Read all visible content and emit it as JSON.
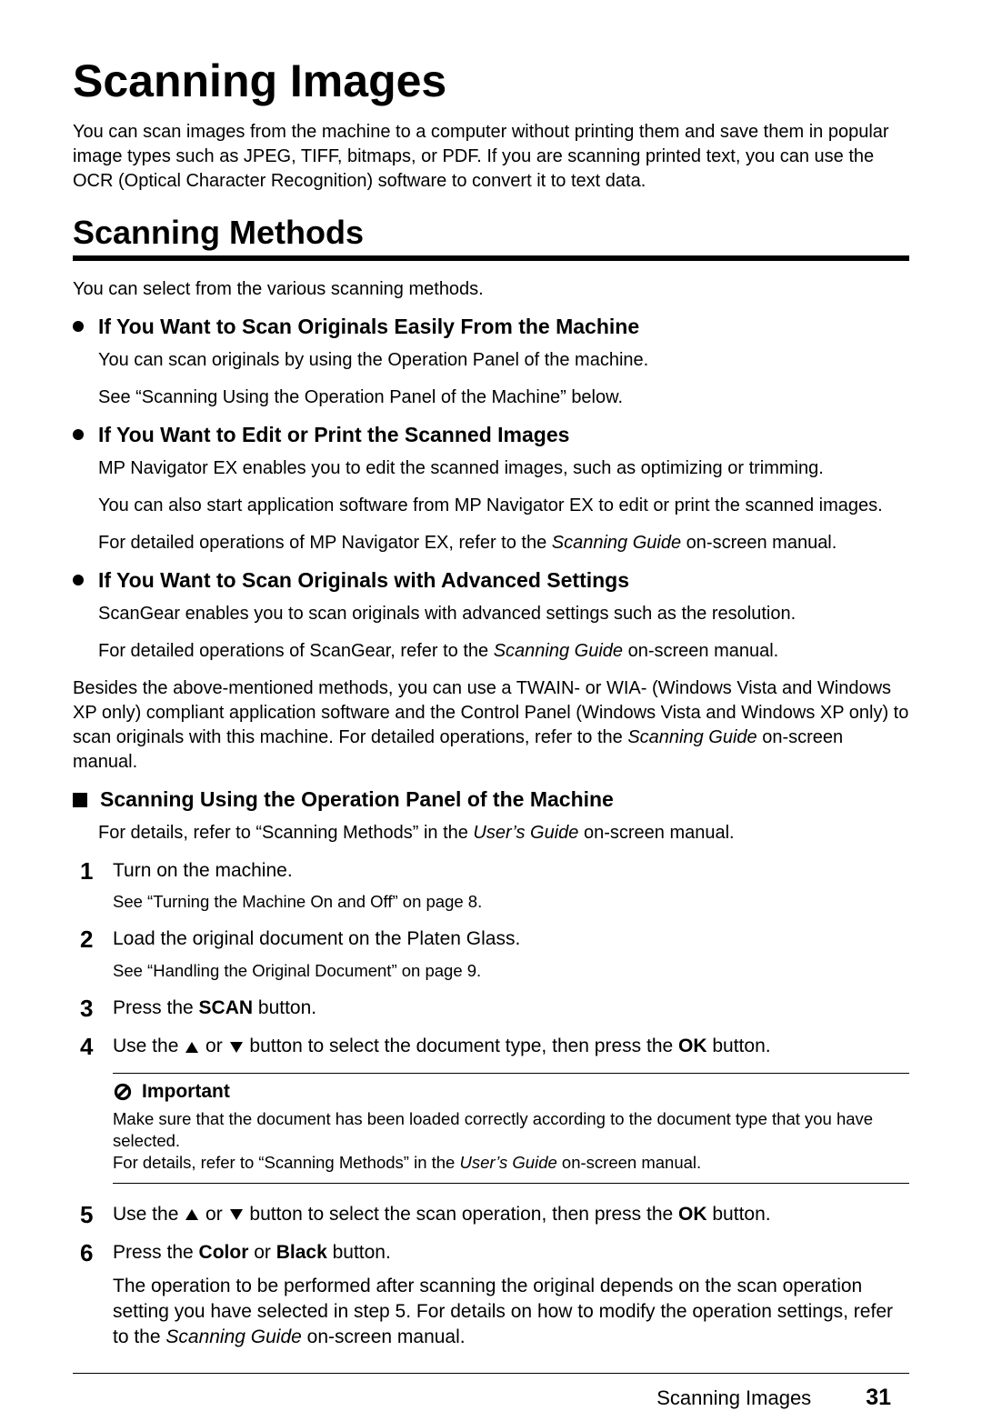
{
  "title": "Scanning Images",
  "intro": "You can scan images from the machine to a computer without printing them and save them in popular image types such as JPEG, TIFF, bitmaps, or PDF. If you are scanning printed text, you can use the OCR (Optical Character Recognition) software to convert it to text data.",
  "section1": {
    "title": "Scanning Methods",
    "intro": "You can select from the various scanning methods.",
    "bullets": [
      {
        "title": "If You Want to Scan Originals Easily From the Machine",
        "paras": [
          "You can scan originals by using the Operation Panel of the machine.",
          "See “Scanning Using the Operation Panel of the Machine” below."
        ]
      },
      {
        "title": "If You Want to Edit or Print the Scanned Images",
        "paras": [
          "MP Navigator EX enables you to edit the scanned images, such as optimizing or trimming.",
          "You can also start application software from MP Navigator EX to edit or print the scanned images.",
          "For detailed operations of MP Navigator EX, refer to the <i>Scanning Guide</i> on-screen manual."
        ]
      },
      {
        "title": "If You Want to Scan Originals with Advanced Settings",
        "paras": [
          "ScanGear enables you to scan originals with advanced settings such as the resolution.",
          "For detailed operations of ScanGear, refer to the <i>Scanning Guide</i> on-screen manual."
        ]
      }
    ],
    "after_bullets": "Besides the above-mentioned methods, you can use a TWAIN- or WIA- (Windows Vista and Windows XP only) compliant application software and the Control Panel (Windows Vista and Windows XP only) to scan originals with this machine. For detailed operations, refer to the <i>Scanning Guide</i> on-screen manual.",
    "square": {
      "title": "Scanning Using the Operation Panel of the Machine",
      "intro": "For details, refer to “Scanning Methods” in the <i>User’s Guide</i> on-screen manual."
    },
    "steps": [
      {
        "num": "1",
        "main": "Turn on the machine.",
        "sub": "See “Turning the Machine On and Off” on page 8."
      },
      {
        "num": "2",
        "main": "Load the original document on the Platen Glass.",
        "sub": "See “Handling the Original Document” on page 9."
      },
      {
        "num": "3",
        "main": "Press the <b>SCAN</b> button."
      },
      {
        "num": "4",
        "main": "Use the <up></up> or <down></down> button to select the document type, then press the <b>OK</b> button.",
        "important": {
          "title": "Important",
          "body": "Make sure that the document has been loaded correctly according to the document type that you have selected.\nFor details, refer to “Scanning Methods” in the <i>User’s Guide</i> on-screen manual."
        }
      },
      {
        "num": "5",
        "main": "Use the <up></up> or <down></down> button to select the scan operation, then press the <b>OK</b> button."
      },
      {
        "num": "6",
        "main": "Press the <b>Color</b> or <b>Black</b> button.",
        "after": "The operation to be performed after scanning the original depends on the scan operation setting you have selected in step 5. For details on how to modify the operation settings, refer to the <i>Scanning Guide</i> on-screen manual."
      }
    ]
  },
  "footer": {
    "label": "Scanning Images",
    "page": "31"
  },
  "colors": {
    "text": "#000000",
    "bg": "#ffffff"
  }
}
